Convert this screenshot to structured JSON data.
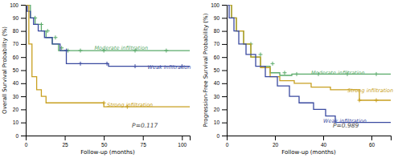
{
  "chart_data": [
    {
      "type": "step",
      "xlabel": "Follow-up (months)",
      "ylabel": "Overall Survival Probability (%)",
      "xlim": [
        0,
        105
      ],
      "ylim": [
        0,
        100
      ],
      "xticks": [
        0,
        25,
        50,
        75,
        100
      ],
      "yticks": [
        0,
        10,
        20,
        30,
        40,
        50,
        60,
        70,
        80,
        90,
        100
      ],
      "annotations": [
        {
          "text": "P=0.117",
          "x": 68,
          "y": 6
        }
      ],
      "series": [
        {
          "name": "Moderate infiltration",
          "color": "#5aaa6a",
          "label_x": 44,
          "label_y": 67,
          "x": [
            0,
            3,
            3,
            6,
            6,
            10,
            10,
            13,
            13,
            17,
            17,
            21,
            21,
            25,
            25,
            105
          ],
          "values": [
            100,
            100,
            90,
            90,
            85,
            85,
            80,
            80,
            75,
            75,
            70,
            70,
            65,
            65,
            65,
            65
          ],
          "censor_x": [
            6,
            10,
            14,
            19,
            23,
            27,
            35,
            50,
            70,
            90
          ],
          "censor_y": [
            90,
            85,
            80,
            75,
            67,
            65,
            65,
            65,
            65,
            65
          ]
        },
        {
          "name": "Weak infiltration",
          "color": "#3a4aa0",
          "label_x": 78,
          "label_y": 52,
          "x": [
            0,
            1,
            1,
            3,
            3,
            5,
            5,
            8,
            8,
            12,
            12,
            17,
            17,
            22,
            22,
            26,
            26,
            48,
            48,
            53,
            53,
            105
          ],
          "values": [
            100,
            100,
            95,
            95,
            90,
            90,
            85,
            85,
            80,
            80,
            75,
            75,
            70,
            70,
            65,
            65,
            55,
            55,
            55,
            55,
            53,
            53
          ],
          "censor_x": [
            26,
            35,
            52,
            70,
            100
          ],
          "censor_y": [
            65,
            55,
            55,
            53,
            53
          ]
        },
        {
          "name": "Strong infiltration",
          "color": "#c8a020",
          "label_x": 52,
          "label_y": 23,
          "x": [
            0,
            2,
            2,
            4,
            4,
            7,
            7,
            10,
            10,
            13,
            13,
            50,
            50,
            105
          ],
          "values": [
            100,
            100,
            70,
            70,
            45,
            45,
            35,
            35,
            30,
            30,
            25,
            25,
            22,
            22
          ],
          "censor_x": [
            50,
            65
          ],
          "censor_y": [
            25,
            22
          ]
        }
      ]
    },
    {
      "type": "step",
      "xlabel": "Follow-up (months)",
      "ylabel": "Progression-Free Survival Probability (%)",
      "xlim": [
        0,
        68
      ],
      "ylim": [
        0,
        100
      ],
      "xticks": [
        0,
        20,
        40,
        60
      ],
      "yticks": [
        0,
        10,
        20,
        30,
        40,
        50,
        60,
        70,
        80,
        90,
        100
      ],
      "annotations": [
        {
          "text": "P=0.989",
          "x": 44,
          "y": 6
        }
      ],
      "series": [
        {
          "name": "Moderate infiltration",
          "color": "#5aaa6a",
          "label_x": 35,
          "label_y": 48,
          "x": [
            0,
            2,
            2,
            4,
            4,
            7,
            7,
            10,
            10,
            14,
            14,
            18,
            18,
            22,
            22,
            27,
            27,
            60,
            60,
            68
          ],
          "values": [
            100,
            100,
            90,
            90,
            80,
            80,
            70,
            70,
            60,
            60,
            53,
            53,
            48,
            48,
            46,
            46,
            47,
            47,
            47,
            47
          ],
          "censor_x": [
            10,
            14,
            19,
            24,
            29,
            38,
            50,
            62
          ],
          "censor_y": [
            70,
            62,
            55,
            48,
            47,
            47,
            47,
            47
          ]
        },
        {
          "name": "Strong infiltration",
          "color": "#c8a020",
          "label_x": 50,
          "label_y": 34,
          "x": [
            0,
            2,
            2,
            4,
            4,
            7,
            7,
            10,
            10,
            14,
            14,
            18,
            18,
            22,
            22,
            28,
            28,
            35,
            35,
            43,
            43,
            55,
            55,
            68
          ],
          "values": [
            100,
            100,
            90,
            90,
            80,
            80,
            70,
            70,
            60,
            60,
            52,
            52,
            45,
            45,
            42,
            42,
            40,
            40,
            37,
            37,
            35,
            35,
            27,
            27
          ],
          "censor_x": [
            55,
            62
          ],
          "censor_y": [
            27,
            27
          ]
        },
        {
          "name": "Weak infiltration",
          "color": "#3a4aa0",
          "label_x": 40,
          "label_y": 11,
          "x": [
            0,
            1,
            1,
            3,
            3,
            5,
            5,
            8,
            8,
            12,
            12,
            16,
            16,
            21,
            21,
            26,
            26,
            30,
            30,
            36,
            36,
            41,
            41,
            45,
            45,
            68
          ],
          "values": [
            100,
            100,
            90,
            90,
            80,
            80,
            70,
            70,
            62,
            62,
            53,
            53,
            45,
            45,
            38,
            38,
            30,
            30,
            25,
            25,
            20,
            20,
            15,
            15,
            10,
            10
          ],
          "censor_x": [],
          "censor_y": []
        }
      ]
    }
  ]
}
